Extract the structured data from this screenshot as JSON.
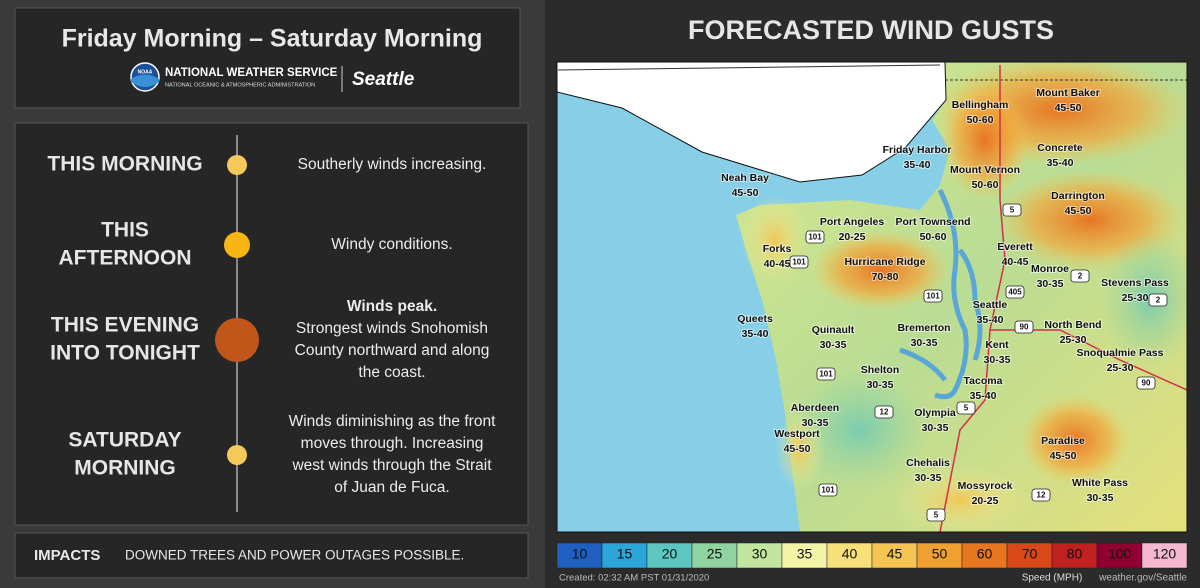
{
  "header": {
    "title": "Friday Morning – Saturday Morning",
    "logo": "NOAA",
    "agency": "NATIONAL WEATHER SERVICE",
    "agency_sub": "NATIONAL OCEANIC & ATMOSPHERIC ADMINISTRATION",
    "office": "Seattle"
  },
  "timeline": [
    {
      "period": [
        "THIS MORNING"
      ],
      "lines": [
        "Southerly winds increasing."
      ],
      "color": "#f5c85a"
    },
    {
      "period": [
        "THIS",
        "AFTERNOON"
      ],
      "lines": [
        "Windy conditions."
      ],
      "color": "#f7b614"
    },
    {
      "period": [
        "THIS EVENING",
        "INTO TONIGHT"
      ],
      "headline": "Winds peak.",
      "lines": [
        "Strongest winds Snohomish",
        "County northward and along",
        "the coast."
      ],
      "color": "#c0561a"
    },
    {
      "period": [
        "SATURDAY",
        "MORNING"
      ],
      "lines": [
        "Winds diminishing as the front",
        "moves through. Increasing",
        "west winds through the Strait",
        "of Juan de Fuca."
      ],
      "color": "#f5c85a"
    }
  ],
  "impacts": {
    "label": "IMPACTS",
    "text": "DOWNED TREES AND POWER OUTAGES POSSIBLE."
  },
  "map": {
    "title": "FORECASTED WIND GUSTS",
    "locations": [
      {
        "name": "Bellingham",
        "gusts": "50-60"
      },
      {
        "name": "Mount Baker",
        "gusts": "45-50"
      },
      {
        "name": "Friday Harbor",
        "gusts": "35-40"
      },
      {
        "name": "Concrete",
        "gusts": "35-40"
      },
      {
        "name": "Mount Vernon",
        "gusts": "50-60"
      },
      {
        "name": "Neah Bay",
        "gusts": "45-50"
      },
      {
        "name": "Darrington",
        "gusts": "45-50"
      },
      {
        "name": "Port Angeles",
        "gusts": "20-25"
      },
      {
        "name": "Port Townsend",
        "gusts": "50-60"
      },
      {
        "name": "Everett",
        "gusts": "40-45"
      },
      {
        "name": "Forks",
        "gusts": "40-45"
      },
      {
        "name": "Hurricane Ridge",
        "gusts": "70-80"
      },
      {
        "name": "Monroe",
        "gusts": "30-35"
      },
      {
        "name": "Stevens Pass",
        "gusts": "25-30"
      },
      {
        "name": "Seattle",
        "gusts": "35-40"
      },
      {
        "name": "Queets",
        "gusts": "35-40"
      },
      {
        "name": "Quinault",
        "gusts": "30-35"
      },
      {
        "name": "North Bend",
        "gusts": "25-30"
      },
      {
        "name": "Bremerton",
        "gusts": "30-35"
      },
      {
        "name": "Kent",
        "gusts": "30-35"
      },
      {
        "name": "Snoqualmie Pass",
        "gusts": "25-30"
      },
      {
        "name": "Shelton",
        "gusts": "30-35"
      },
      {
        "name": "Tacoma",
        "gusts": "35-40"
      },
      {
        "name": "Aberdeen",
        "gusts": "30-35"
      },
      {
        "name": "Olympia",
        "gusts": "30-35"
      },
      {
        "name": "Westport",
        "gusts": "45-50"
      },
      {
        "name": "Paradise",
        "gusts": "45-50"
      },
      {
        "name": "Chehalis",
        "gusts": "30-35"
      },
      {
        "name": "White Pass",
        "gusts": "30-35"
      },
      {
        "name": "Mossyrock",
        "gusts": "20-25"
      }
    ],
    "highways": [
      "101",
      "101",
      "101",
      "101",
      "101",
      "5",
      "5",
      "5",
      "405",
      "90",
      "90",
      "12",
      "12",
      "2",
      "2"
    ],
    "color_scale": {
      "label": "Speed (MPH)",
      "ticks": [
        10,
        15,
        20,
        25,
        30,
        35,
        40,
        45,
        50,
        60,
        70,
        80,
        100,
        120
      ],
      "colors": [
        "#1f5fbf",
        "#2aa6d8",
        "#5cc7c0",
        "#8fd3a0",
        "#c2e6a0",
        "#f2f5a8",
        "#f7e07a",
        "#f5c452",
        "#f0a030",
        "#e87520",
        "#d84818",
        "#c02020",
        "#900030",
        "#f4b8d0"
      ]
    },
    "created": "Created: 02:32 AM PST 01/31/2020",
    "source": "weather.gov/Seattle"
  }
}
